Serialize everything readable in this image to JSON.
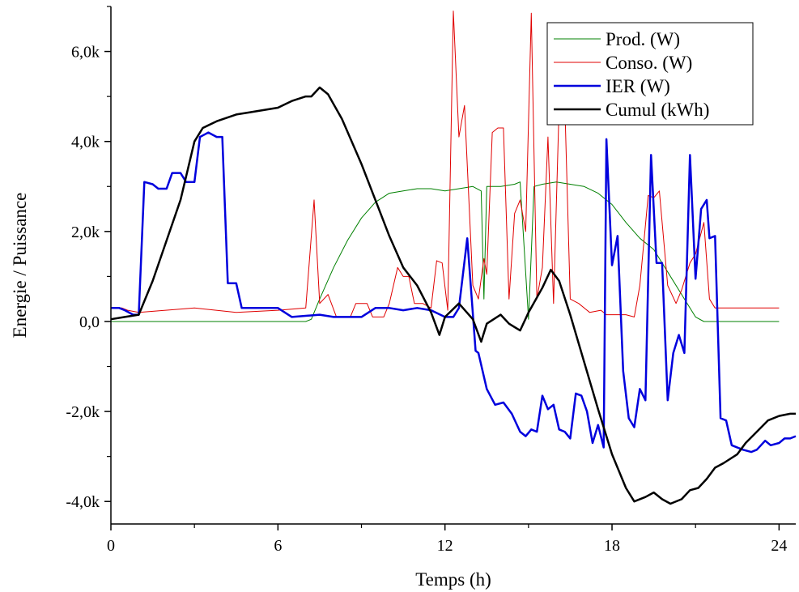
{
  "chart_data": {
    "type": "line",
    "title": "",
    "xlabel": "Temps (h)",
    "ylabel": "Energie / Puissance",
    "xlim": [
      0,
      24.6
    ],
    "ylim": [
      -4.5,
      7.0
    ],
    "x_ticks": [
      0,
      6,
      12,
      18,
      24
    ],
    "x_tick_labels": [
      "0",
      "6",
      "12",
      "18",
      "24"
    ],
    "y_ticks": [
      -4,
      -2,
      0,
      2,
      4,
      6
    ],
    "y_tick_labels": [
      "-4,0k",
      "-2,0k",
      "0,0",
      "2,0k",
      "4,0k",
      "6,0k"
    ],
    "grid": false,
    "legend_position": "top-right",
    "series": [
      {
        "name": "Prod. (W)",
        "color": "#008000",
        "width": 1,
        "points": [
          [
            0,
            0
          ],
          [
            7,
            0
          ],
          [
            7.2,
            0.05
          ],
          [
            7.5,
            0.5
          ],
          [
            8,
            1.2
          ],
          [
            8.5,
            1.8
          ],
          [
            9,
            2.3
          ],
          [
            9.5,
            2.65
          ],
          [
            10,
            2.85
          ],
          [
            10.5,
            2.9
          ],
          [
            11,
            2.95
          ],
          [
            11.5,
            2.95
          ],
          [
            12,
            2.9
          ],
          [
            12.5,
            2.95
          ],
          [
            13,
            3.0
          ],
          [
            13.3,
            2.9
          ],
          [
            13.4,
            0.5
          ],
          [
            13.5,
            3.0
          ],
          [
            14,
            3.0
          ],
          [
            14.5,
            3.05
          ],
          [
            14.7,
            3.1
          ],
          [
            15,
            0.05
          ],
          [
            15.2,
            3.0
          ],
          [
            15.5,
            3.05
          ],
          [
            16,
            3.1
          ],
          [
            16.5,
            3.05
          ],
          [
            17,
            3.0
          ],
          [
            17.5,
            2.85
          ],
          [
            18,
            2.6
          ],
          [
            18.5,
            2.2
          ],
          [
            19,
            1.85
          ],
          [
            19.5,
            1.6
          ],
          [
            20,
            1.1
          ],
          [
            20.5,
            0.6
          ],
          [
            21,
            0.1
          ],
          [
            21.3,
            0
          ],
          [
            24,
            0
          ]
        ]
      },
      {
        "name": "Conso. (W)",
        "color": "#e00000",
        "width": 1,
        "points": [
          [
            0,
            0.3
          ],
          [
            0.4,
            0.3
          ],
          [
            0.6,
            0.25
          ],
          [
            1,
            0.2
          ],
          [
            3,
            0.3
          ],
          [
            4.5,
            0.2
          ],
          [
            6,
            0.25
          ],
          [
            7,
            0.3
          ],
          [
            7.3,
            2.7
          ],
          [
            7.5,
            0.4
          ],
          [
            7.8,
            0.6
          ],
          [
            8.1,
            0.1
          ],
          [
            8.6,
            0.1
          ],
          [
            8.8,
            0.4
          ],
          [
            9.2,
            0.4
          ],
          [
            9.4,
            0.1
          ],
          [
            9.8,
            0.1
          ],
          [
            10,
            0.4
          ],
          [
            10.3,
            1.2
          ],
          [
            10.5,
            1.0
          ],
          [
            10.7,
            1.0
          ],
          [
            10.9,
            0.4
          ],
          [
            11.2,
            0.4
          ],
          [
            11.5,
            0.3
          ],
          [
            11.7,
            1.35
          ],
          [
            11.9,
            1.3
          ],
          [
            12.1,
            0.25
          ],
          [
            12.3,
            6.9
          ],
          [
            12.5,
            4.1
          ],
          [
            12.7,
            4.8
          ],
          [
            13,
            0.8
          ],
          [
            13.2,
            0.5
          ],
          [
            13.4,
            1.4
          ],
          [
            13.5,
            1.05
          ],
          [
            13.7,
            4.2
          ],
          [
            13.9,
            4.3
          ],
          [
            14.1,
            4.3
          ],
          [
            14.3,
            0.5
          ],
          [
            14.5,
            2.4
          ],
          [
            14.7,
            2.7
          ],
          [
            14.9,
            2.0
          ],
          [
            15.1,
            6.85
          ],
          [
            15.3,
            0.5
          ],
          [
            15.5,
            1.2
          ],
          [
            15.7,
            4.1
          ],
          [
            15.9,
            0.4
          ],
          [
            16.1,
            4.8
          ],
          [
            16.3,
            4.9
          ],
          [
            16.5,
            0.5
          ],
          [
            16.8,
            0.4
          ],
          [
            17.2,
            0.2
          ],
          [
            17.6,
            0.25
          ],
          [
            17.8,
            0.15
          ],
          [
            18.2,
            0.15
          ],
          [
            18.5,
            0.15
          ],
          [
            18.8,
            0.1
          ],
          [
            19,
            0.8
          ],
          [
            19.3,
            2.8
          ],
          [
            19.5,
            2.75
          ],
          [
            19.7,
            2.9
          ],
          [
            20,
            0.8
          ],
          [
            20.3,
            0.4
          ],
          [
            20.5,
            0.7
          ],
          [
            20.8,
            1.3
          ],
          [
            21,
            1.5
          ],
          [
            21.3,
            2.2
          ],
          [
            21.5,
            0.5
          ],
          [
            21.7,
            0.3
          ],
          [
            22,
            0.3
          ],
          [
            24,
            0.3
          ]
        ]
      },
      {
        "name": "IER (W)",
        "color": "#0000dd",
        "width": 2.5,
        "points": [
          [
            0,
            0.3
          ],
          [
            0.3,
            0.3
          ],
          [
            0.5,
            0.25
          ],
          [
            0.8,
            0.15
          ],
          [
            1,
            0.15
          ],
          [
            1.2,
            3.1
          ],
          [
            1.5,
            3.05
          ],
          [
            1.7,
            2.95
          ],
          [
            2,
            2.95
          ],
          [
            2.2,
            3.3
          ],
          [
            2.5,
            3.3
          ],
          [
            2.7,
            3.1
          ],
          [
            3,
            3.1
          ],
          [
            3.2,
            4.1
          ],
          [
            3.5,
            4.2
          ],
          [
            3.8,
            4.1
          ],
          [
            4,
            4.1
          ],
          [
            4.2,
            0.85
          ],
          [
            4.5,
            0.85
          ],
          [
            4.7,
            0.3
          ],
          [
            5.5,
            0.3
          ],
          [
            6,
            0.3
          ],
          [
            6.5,
            0.1
          ],
          [
            7.5,
            0.15
          ],
          [
            8,
            0.1
          ],
          [
            8.5,
            0.1
          ],
          [
            9,
            0.1
          ],
          [
            9.5,
            0.3
          ],
          [
            10,
            0.3
          ],
          [
            10.5,
            0.25
          ],
          [
            11,
            0.3
          ],
          [
            11.5,
            0.25
          ],
          [
            12,
            0.1
          ],
          [
            12.3,
            0.1
          ],
          [
            12.5,
            0.3
          ],
          [
            12.8,
            1.85
          ],
          [
            13.1,
            -0.65
          ],
          [
            13.2,
            -0.7
          ],
          [
            13.5,
            -1.5
          ],
          [
            13.8,
            -1.85
          ],
          [
            14.1,
            -1.8
          ],
          [
            14.4,
            -2.05
          ],
          [
            14.7,
            -2.45
          ],
          [
            14.9,
            -2.55
          ],
          [
            15.1,
            -2.4
          ],
          [
            15.3,
            -2.45
          ],
          [
            15.5,
            -1.65
          ],
          [
            15.7,
            -1.95
          ],
          [
            15.9,
            -1.85
          ],
          [
            16.1,
            -2.4
          ],
          [
            16.3,
            -2.45
          ],
          [
            16.5,
            -2.6
          ],
          [
            16.7,
            -1.6
          ],
          [
            16.9,
            -1.65
          ],
          [
            17.1,
            -2.0
          ],
          [
            17.3,
            -2.7
          ],
          [
            17.5,
            -2.3
          ],
          [
            17.7,
            -2.8
          ],
          [
            17.8,
            4.05
          ],
          [
            18,
            1.25
          ],
          [
            18.2,
            1.9
          ],
          [
            18.4,
            -1.1
          ],
          [
            18.6,
            -2.15
          ],
          [
            18.8,
            -2.35
          ],
          [
            19,
            -1.5
          ],
          [
            19.2,
            -1.75
          ],
          [
            19.4,
            3.7
          ],
          [
            19.6,
            1.3
          ],
          [
            19.8,
            1.3
          ],
          [
            20,
            -1.75
          ],
          [
            20.2,
            -0.7
          ],
          [
            20.4,
            -0.3
          ],
          [
            20.6,
            -0.7
          ],
          [
            20.8,
            3.7
          ],
          [
            21,
            0.95
          ],
          [
            21.2,
            2.5
          ],
          [
            21.4,
            2.7
          ],
          [
            21.5,
            1.85
          ],
          [
            21.7,
            1.9
          ],
          [
            21.9,
            -2.15
          ],
          [
            22.1,
            -2.2
          ],
          [
            22.3,
            -2.75
          ],
          [
            22.7,
            -2.85
          ],
          [
            23,
            -2.9
          ],
          [
            23.2,
            -2.85
          ],
          [
            23.5,
            -2.65
          ],
          [
            23.7,
            -2.75
          ],
          [
            24,
            -2.7
          ],
          [
            24.2,
            -2.6
          ],
          [
            24.4,
            -2.6
          ],
          [
            24.6,
            -2.55
          ]
        ]
      },
      {
        "name": "Cumul (kWh)",
        "color": "#000000",
        "width": 2.5,
        "points": [
          [
            0,
            0.05
          ],
          [
            0.5,
            0.1
          ],
          [
            1,
            0.15
          ],
          [
            1.5,
            0.9
          ],
          [
            2,
            1.8
          ],
          [
            2.5,
            2.7
          ],
          [
            3,
            4.0
          ],
          [
            3.3,
            4.3
          ],
          [
            3.8,
            4.45
          ],
          [
            4.5,
            4.6
          ],
          [
            5,
            4.65
          ],
          [
            6,
            4.75
          ],
          [
            6.5,
            4.9
          ],
          [
            7,
            5.0
          ],
          [
            7.2,
            5.0
          ],
          [
            7.5,
            5.2
          ],
          [
            7.8,
            5.05
          ],
          [
            8.3,
            4.5
          ],
          [
            9,
            3.5
          ],
          [
            9.5,
            2.7
          ],
          [
            10,
            1.9
          ],
          [
            10.5,
            1.2
          ],
          [
            11,
            0.8
          ],
          [
            11.5,
            0.2
          ],
          [
            11.8,
            -0.3
          ],
          [
            12,
            0.1
          ],
          [
            12.5,
            0.4
          ],
          [
            13,
            0.05
          ],
          [
            13.3,
            -0.45
          ],
          [
            13.5,
            -0.05
          ],
          [
            14,
            0.15
          ],
          [
            14.3,
            -0.05
          ],
          [
            14.7,
            -0.2
          ],
          [
            15,
            0.2
          ],
          [
            15.5,
            0.75
          ],
          [
            15.8,
            1.15
          ],
          [
            16.1,
            0.9
          ],
          [
            16.5,
            0.15
          ],
          [
            17,
            -0.9
          ],
          [
            17.5,
            -1.95
          ],
          [
            18,
            -2.95
          ],
          [
            18.5,
            -3.7
          ],
          [
            18.8,
            -4.0
          ],
          [
            19.2,
            -3.9
          ],
          [
            19.5,
            -3.8
          ],
          [
            19.8,
            -3.95
          ],
          [
            20.1,
            -4.05
          ],
          [
            20.5,
            -3.95
          ],
          [
            20.8,
            -3.75
          ],
          [
            21.1,
            -3.7
          ],
          [
            21.4,
            -3.5
          ],
          [
            21.7,
            -3.25
          ],
          [
            22,
            -3.15
          ],
          [
            22.5,
            -2.95
          ],
          [
            22.8,
            -2.7
          ],
          [
            23.2,
            -2.45
          ],
          [
            23.6,
            -2.2
          ],
          [
            24,
            -2.1
          ],
          [
            24.4,
            -2.05
          ],
          [
            24.6,
            -2.05
          ]
        ]
      }
    ]
  }
}
